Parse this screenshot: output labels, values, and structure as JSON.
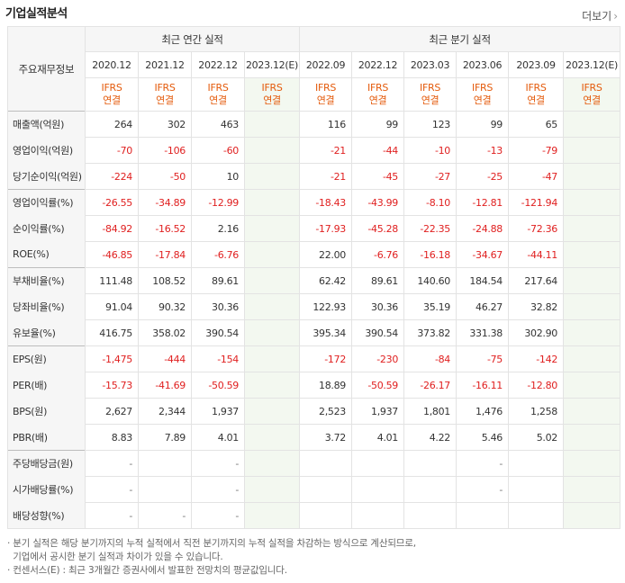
{
  "title": "기업실적분석",
  "more_label": "더보기",
  "header": {
    "row_label": "주요재무정보",
    "annual_group": "최근 연간 실적",
    "quarter_group": "최근 분기 실적",
    "annual_periods": [
      "2020.12",
      "2021.12",
      "2022.12",
      "2023.12(E)"
    ],
    "quarter_periods": [
      "2022.09",
      "2022.12",
      "2023.03",
      "2023.06",
      "2023.09",
      "2023.12(E)"
    ],
    "ifrs_top": "IFRS",
    "ifrs_bottom": "연결"
  },
  "rows": [
    {
      "label": "매출액(억원)",
      "annual": [
        "264",
        "302",
        "463",
        ""
      ],
      "quarter": [
        "116",
        "99",
        "123",
        "99",
        "65",
        ""
      ]
    },
    {
      "label": "영업이익(억원)",
      "annual": [
        "-70",
        "-106",
        "-60",
        ""
      ],
      "quarter": [
        "-21",
        "-44",
        "-10",
        "-13",
        "-79",
        ""
      ]
    },
    {
      "label": "당기순이익(억원)",
      "annual": [
        "-224",
        "-50",
        "10",
        ""
      ],
      "quarter": [
        "-21",
        "-45",
        "-27",
        "-25",
        "-47",
        ""
      ]
    },
    {
      "label": "영업이익률(%)",
      "annual": [
        "-26.55",
        "-34.89",
        "-12.99",
        ""
      ],
      "quarter": [
        "-18.43",
        "-43.99",
        "-8.10",
        "-12.81",
        "-121.94",
        ""
      ]
    },
    {
      "label": "순이익률(%)",
      "annual": [
        "-84.92",
        "-16.52",
        "2.16",
        ""
      ],
      "quarter": [
        "-17.93",
        "-45.28",
        "-22.35",
        "-24.88",
        "-72.36",
        ""
      ]
    },
    {
      "label": "ROE(%)",
      "annual": [
        "-46.85",
        "-17.84",
        "-6.76",
        ""
      ],
      "quarter": [
        "22.00",
        "-6.76",
        "-16.18",
        "-34.67",
        "-44.11",
        ""
      ]
    },
    {
      "label": "부채비율(%)",
      "annual": [
        "111.48",
        "108.52",
        "89.61",
        ""
      ],
      "quarter": [
        "62.42",
        "89.61",
        "140.60",
        "184.54",
        "217.64",
        ""
      ]
    },
    {
      "label": "당좌비율(%)",
      "annual": [
        "91.04",
        "90.32",
        "30.36",
        ""
      ],
      "quarter": [
        "122.93",
        "30.36",
        "35.19",
        "46.27",
        "32.82",
        ""
      ]
    },
    {
      "label": "유보율(%)",
      "annual": [
        "416.75",
        "358.02",
        "390.54",
        ""
      ],
      "quarter": [
        "395.34",
        "390.54",
        "373.82",
        "331.38",
        "302.90",
        ""
      ]
    },
    {
      "label": "EPS(원)",
      "annual": [
        "-1,475",
        "-444",
        "-154",
        ""
      ],
      "quarter": [
        "-172",
        "-230",
        "-84",
        "-75",
        "-142",
        ""
      ]
    },
    {
      "label": "PER(배)",
      "annual": [
        "-15.73",
        "-41.69",
        "-50.59",
        ""
      ],
      "quarter": [
        "18.89",
        "-50.59",
        "-26.17",
        "-16.11",
        "-12.80",
        ""
      ]
    },
    {
      "label": "BPS(원)",
      "annual": [
        "2,627",
        "2,344",
        "1,937",
        ""
      ],
      "quarter": [
        "2,523",
        "1,937",
        "1,801",
        "1,476",
        "1,258",
        ""
      ]
    },
    {
      "label": "PBR(배)",
      "annual": [
        "8.83",
        "7.89",
        "4.01",
        ""
      ],
      "quarter": [
        "3.72",
        "4.01",
        "4.22",
        "5.46",
        "5.02",
        ""
      ]
    },
    {
      "label": "주당배당금(원)",
      "annual": [
        "-",
        "",
        "-",
        ""
      ],
      "quarter": [
        "",
        "",
        "",
        "-",
        "",
        ""
      ]
    },
    {
      "label": "시가배당률(%)",
      "annual": [
        "-",
        "",
        "-",
        ""
      ],
      "quarter": [
        "",
        "",
        "",
        "-",
        "",
        ""
      ]
    },
    {
      "label": "배당성향(%)",
      "annual": [
        "-",
        "-",
        "-",
        ""
      ],
      "quarter": [
        "",
        "",
        "",
        "",
        "",
        ""
      ]
    }
  ],
  "notes": [
    "· 분기 실적은 해당 분기까지의 누적 실적에서 직전 분기까지의 누적 실적을 차감하는 방식으로 계산되므로,",
    "  기업에서 공시한 분기 실적과 차이가 있을 수 있습니다.",
    "· 컨센서스(E) : 최근 3개월간 증권사에서 발표한 전망치의 평균값입니다."
  ]
}
